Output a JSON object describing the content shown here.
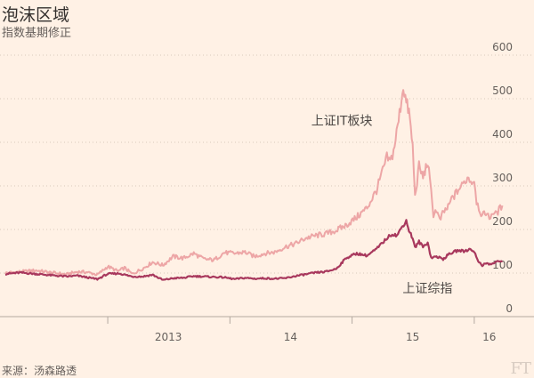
{
  "title": "泡沫区域",
  "subtitle": "指数基期修正",
  "source": "来源：汤森路透",
  "logo": "FT",
  "chart_data": {
    "type": "line",
    "ylim": [
      0,
      600
    ],
    "yticks": [
      0,
      100,
      200,
      300,
      400,
      500,
      600
    ],
    "grid": true,
    "xlim": [
      "2012-03-01",
      "2016-04-30"
    ],
    "xtick_labels": [
      {
        "date": "2013-07-01",
        "label": "2013"
      },
      {
        "date": "2014-07-01",
        "label": "14"
      },
      {
        "date": "2015-07-01",
        "label": "15"
      },
      {
        "date": "2016-02-15",
        "label": "16"
      }
    ],
    "year_boundaries": [
      "2013-01-01",
      "2014-01-01",
      "2015-01-01",
      "2016-01-01"
    ],
    "series": [
      {
        "name": "上证IT板块",
        "color": "#eda6a6",
        "points": [
          [
            "2012-03-01",
            100
          ],
          [
            "2012-04-15",
            103
          ],
          [
            "2012-06-01",
            106
          ],
          [
            "2012-07-15",
            101
          ],
          [
            "2012-09-01",
            97
          ],
          [
            "2012-10-01",
            103
          ],
          [
            "2012-11-01",
            102
          ],
          [
            "2012-12-01",
            96
          ],
          [
            "2013-01-01",
            115
          ],
          [
            "2013-02-01",
            104
          ],
          [
            "2013-02-20",
            112
          ],
          [
            "2013-03-15",
            98
          ],
          [
            "2013-04-15",
            110
          ],
          [
            "2013-05-15",
            125
          ],
          [
            "2013-06-15",
            118
          ],
          [
            "2013-07-15",
            138
          ],
          [
            "2013-08-15",
            134
          ],
          [
            "2013-09-15",
            145
          ],
          [
            "2013-10-15",
            132
          ],
          [
            "2013-11-15",
            130
          ],
          [
            "2013-12-15",
            147
          ],
          [
            "2014-01-15",
            145
          ],
          [
            "2014-02-15",
            148
          ],
          [
            "2014-03-15",
            138
          ],
          [
            "2014-04-15",
            145
          ],
          [
            "2014-05-15",
            148
          ],
          [
            "2014-06-15",
            160
          ],
          [
            "2014-07-15",
            167
          ],
          [
            "2014-08-15",
            180
          ],
          [
            "2014-09-15",
            186
          ],
          [
            "2014-10-15",
            190
          ],
          [
            "2014-11-15",
            198
          ],
          [
            "2014-12-15",
            210
          ],
          [
            "2015-01-15",
            228
          ],
          [
            "2015-02-15",
            250
          ],
          [
            "2015-03-15",
            290
          ],
          [
            "2015-04-15",
            365
          ],
          [
            "2015-04-25",
            355
          ],
          [
            "2015-05-05",
            380
          ],
          [
            "2015-05-20",
            450
          ],
          [
            "2015-06-03",
            530
          ],
          [
            "2015-06-12",
            490
          ],
          [
            "2015-06-20",
            470
          ],
          [
            "2015-07-01",
            390
          ],
          [
            "2015-07-08",
            275
          ],
          [
            "2015-07-20",
            345
          ],
          [
            "2015-08-01",
            320
          ],
          [
            "2015-08-15",
            355
          ],
          [
            "2015-08-25",
            285
          ],
          [
            "2015-09-01",
            235
          ],
          [
            "2015-09-10",
            245
          ],
          [
            "2015-09-20",
            220
          ],
          [
            "2015-10-01",
            240
          ],
          [
            "2015-10-15",
            250
          ],
          [
            "2015-10-25",
            270
          ],
          [
            "2015-11-05",
            280
          ],
          [
            "2015-11-15",
            292
          ],
          [
            "2015-11-25",
            300
          ],
          [
            "2015-12-05",
            312
          ],
          [
            "2015-12-15",
            320
          ],
          [
            "2015-12-25",
            308
          ],
          [
            "2016-01-01",
            315
          ],
          [
            "2016-01-08",
            265
          ],
          [
            "2016-01-15",
            250
          ],
          [
            "2016-01-25",
            230
          ],
          [
            "2016-02-05",
            240
          ],
          [
            "2016-02-15",
            225
          ],
          [
            "2016-02-25",
            240
          ],
          [
            "2016-03-05",
            235
          ],
          [
            "2016-03-15",
            245
          ],
          [
            "2016-03-25",
            255
          ]
        ]
      },
      {
        "name": "上证综指",
        "color": "#a8385d",
        "points": [
          [
            "2012-03-01",
            98
          ],
          [
            "2012-04-15",
            101
          ],
          [
            "2012-06-01",
            98
          ],
          [
            "2012-07-15",
            95
          ],
          [
            "2012-09-01",
            92
          ],
          [
            "2012-10-01",
            94
          ],
          [
            "2012-11-01",
            90
          ],
          [
            "2012-12-01",
            86
          ],
          [
            "2013-01-01",
            98
          ],
          [
            "2013-02-05",
            99
          ],
          [
            "2013-03-15",
            92
          ],
          [
            "2013-04-15",
            92
          ],
          [
            "2013-05-15",
            96
          ],
          [
            "2013-06-15",
            84
          ],
          [
            "2013-07-15",
            88
          ],
          [
            "2013-08-15",
            89
          ],
          [
            "2013-09-15",
            93
          ],
          [
            "2013-10-15",
            92
          ],
          [
            "2013-11-15",
            91
          ],
          [
            "2013-12-15",
            90
          ],
          [
            "2014-01-15",
            86
          ],
          [
            "2014-02-15",
            89
          ],
          [
            "2014-03-15",
            87
          ],
          [
            "2014-04-15",
            88
          ],
          [
            "2014-05-15",
            87
          ],
          [
            "2014-06-15",
            88
          ],
          [
            "2014-07-15",
            93
          ],
          [
            "2014-08-15",
            97
          ],
          [
            "2014-09-15",
            101
          ],
          [
            "2014-10-15",
            103
          ],
          [
            "2014-11-15",
            110
          ],
          [
            "2014-12-15",
            135
          ],
          [
            "2015-01-15",
            145
          ],
          [
            "2015-02-15",
            140
          ],
          [
            "2015-03-15",
            155
          ],
          [
            "2015-04-15",
            180
          ],
          [
            "2015-05-01",
            190
          ],
          [
            "2015-05-15",
            186
          ],
          [
            "2015-06-01",
            208
          ],
          [
            "2015-06-12",
            220
          ],
          [
            "2015-06-20",
            198
          ],
          [
            "2015-07-01",
            180
          ],
          [
            "2015-07-08",
            158
          ],
          [
            "2015-07-20",
            172
          ],
          [
            "2015-08-01",
            160
          ],
          [
            "2015-08-15",
            170
          ],
          [
            "2015-08-25",
            135
          ],
          [
            "2015-09-10",
            138
          ],
          [
            "2015-09-30",
            132
          ],
          [
            "2015-10-15",
            142
          ],
          [
            "2015-10-30",
            148
          ],
          [
            "2015-11-15",
            152
          ],
          [
            "2015-12-01",
            150
          ],
          [
            "2015-12-20",
            155
          ],
          [
            "2016-01-01",
            150
          ],
          [
            "2016-01-10",
            130
          ],
          [
            "2016-01-25",
            118
          ],
          [
            "2016-02-05",
            122
          ],
          [
            "2016-02-20",
            120
          ],
          [
            "2016-03-05",
            125
          ],
          [
            "2016-03-25",
            128
          ]
        ]
      }
    ],
    "annotations": [
      {
        "text": "上证IT板块",
        "date": "2014-09-01",
        "value": 440
      },
      {
        "text": "上证综指",
        "date": "2015-06-01",
        "value": 55
      }
    ]
  }
}
